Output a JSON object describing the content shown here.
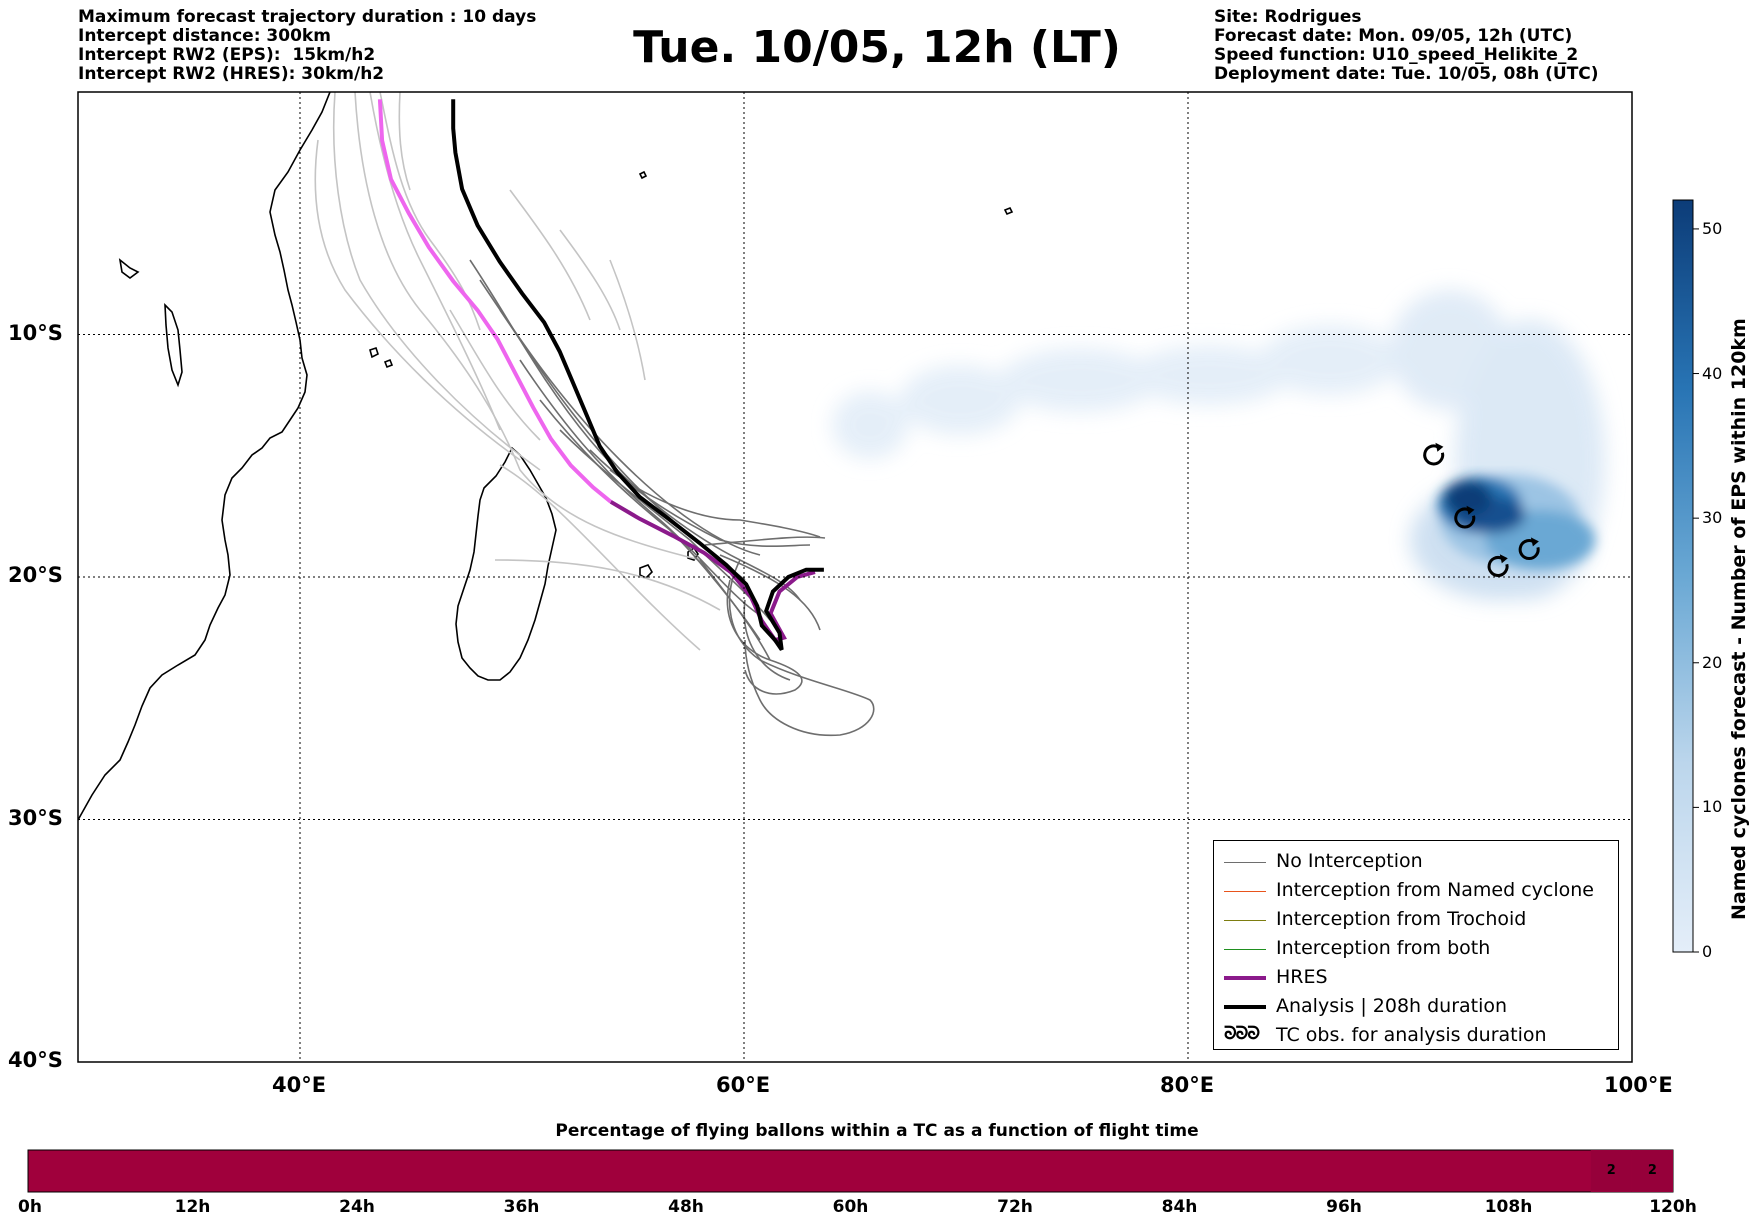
{
  "header_left": [
    "Maximum forecast trajectory duration : 10 days",
    "Intercept distance: 300km",
    "Intercept RW2 (EPS):  15km/h2",
    "Intercept RW2 (HRES): 30km/h2"
  ],
  "title": "Tue. 10/05, 12h (LT)",
  "header_right": [
    "Site: Rodrigues",
    "Forecast date: Mon. 09/05, 12h (UTC)",
    "Speed function: U10_speed_Helikite_2",
    "Deployment date: Tue. 10/05, 08h (UTC)"
  ],
  "map": {
    "lon_range": [
      30,
      100
    ],
    "lat_range": [
      -40,
      0
    ],
    "lon_ticks": [
      {
        "value": 40,
        "label": "40°E"
      },
      {
        "value": 60,
        "label": "60°E"
      },
      {
        "value": 80,
        "label": "80°E"
      },
      {
        "value": 100,
        "label": "100°E"
      }
    ],
    "lat_ticks": [
      {
        "value": -10,
        "label": "10°S"
      },
      {
        "value": -20,
        "label": "20°S"
      },
      {
        "value": -30,
        "label": "30°S"
      },
      {
        "value": -40,
        "label": "40°S"
      }
    ],
    "colors": {
      "eps_member": "#6e6e6e",
      "eps_light": "#c4c4c4",
      "hres": "#8b1a8b",
      "hres_light": "#ee66ee",
      "analysis": "#000000"
    },
    "analysis_track": [
      [
        46.9,
        -0.3
      ],
      [
        46.9,
        -1.5
      ],
      [
        47.0,
        -2.5
      ],
      [
        47.3,
        -4.0
      ],
      [
        48.0,
        -5.5
      ],
      [
        49.0,
        -7.0
      ],
      [
        50.0,
        -8.3
      ],
      [
        51.0,
        -9.5
      ],
      [
        51.7,
        -10.7
      ],
      [
        52.3,
        -12.0
      ],
      [
        52.9,
        -13.3
      ],
      [
        53.5,
        -14.6
      ],
      [
        54.3,
        -15.7
      ],
      [
        55.3,
        -16.7
      ],
      [
        56.6,
        -17.6
      ],
      [
        58.0,
        -18.6
      ],
      [
        59.2,
        -19.5
      ],
      [
        60.1,
        -20.3
      ],
      [
        60.6,
        -21.2
      ],
      [
        60.8,
        -22.0
      ],
      [
        61.4,
        -22.6
      ],
      [
        61.7,
        -23.0
      ],
      [
        61.6,
        -22.3
      ],
      [
        61.0,
        -21.4
      ],
      [
        61.3,
        -20.6
      ],
      [
        62.0,
        -20.0
      ],
      [
        62.8,
        -19.7
      ],
      [
        63.6,
        -19.7
      ]
    ],
    "hres_track_light": [
      [
        43.6,
        -0.3
      ],
      [
        43.7,
        -2.0
      ],
      [
        44.1,
        -3.6
      ],
      [
        44.9,
        -5.0
      ],
      [
        45.8,
        -6.4
      ],
      [
        46.9,
        -7.8
      ],
      [
        48.0,
        -9.0
      ],
      [
        48.9,
        -10.2
      ],
      [
        49.7,
        -11.6
      ],
      [
        50.5,
        -13.0
      ],
      [
        51.3,
        -14.3
      ],
      [
        52.2,
        -15.4
      ],
      [
        53.2,
        -16.3
      ],
      [
        54.0,
        -16.9
      ]
    ],
    "hres_track_dark": [
      [
        54.0,
        -16.9
      ],
      [
        55.3,
        -17.6
      ],
      [
        56.8,
        -18.3
      ],
      [
        58.2,
        -19.0
      ],
      [
        59.4,
        -19.8
      ],
      [
        60.3,
        -20.8
      ],
      [
        60.8,
        -21.8
      ],
      [
        61.4,
        -22.6
      ],
      [
        61.8,
        -22.5
      ],
      [
        61.2,
        -21.5
      ],
      [
        61.6,
        -20.6
      ],
      [
        62.4,
        -20.0
      ],
      [
        63.2,
        -19.8
      ]
    ],
    "tc_obs": [
      [
        91.1,
        -15.0
      ],
      [
        92.5,
        -17.6
      ],
      [
        94.0,
        -19.6
      ],
      [
        95.4,
        -18.9
      ]
    ]
  },
  "colorbar": {
    "label": "Named cyclones forecast - Number of EPS within 120km",
    "min": 0,
    "max": 52,
    "ticks": [
      0,
      10,
      20,
      30,
      40,
      50
    ],
    "color_low": "#e4eef9",
    "color_high": "#0c3c78"
  },
  "legend": {
    "items": [
      {
        "label": "No Interception",
        "color": "#6e6e6e",
        "width": 1
      },
      {
        "label": "Interception from Named cyclone",
        "color": "#e8541c",
        "width": 1
      },
      {
        "label": "Interception from Trochoid",
        "color": "#7d7d10",
        "width": 1
      },
      {
        "label": "Interception from both",
        "color": "#1f8f1f",
        "width": 1
      },
      {
        "label": "HRES",
        "color": "#8b1a8b",
        "width": 4
      },
      {
        "label": "Analysis | 208h duration",
        "color": "#000000",
        "width": 4
      },
      {
        "label": "TC obs. for analysis duration",
        "symbol": "ᘐᘐᘐ"
      }
    ]
  },
  "bottom_bar": {
    "title": "Percentage of flying ballons within a TC as a function of flight time",
    "color": "#a0003c",
    "ticks": [
      "0h",
      "12h",
      "24h",
      "36h",
      "48h",
      "60h",
      "72h",
      "84h",
      "96h",
      "108h",
      "120h"
    ],
    "cells": [
      {
        "hour_start": 114,
        "hour_end": 117,
        "label": "2"
      },
      {
        "hour_start": 117,
        "hour_end": 120,
        "label": "2"
      }
    ]
  }
}
